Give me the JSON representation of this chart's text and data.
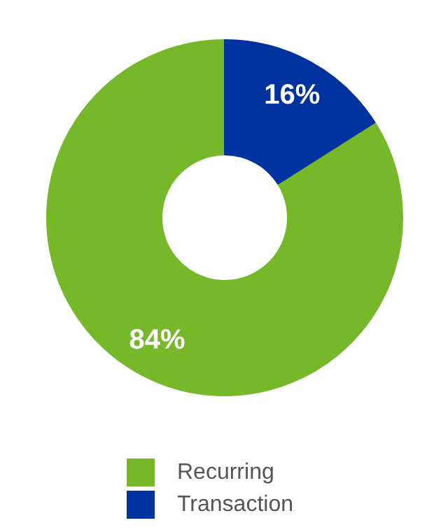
{
  "chart_data": {
    "type": "donut",
    "categories": [
      "Recurring",
      "Transaction"
    ],
    "values": [
      84,
      16
    ],
    "colors": [
      "#76b82a",
      "#0033a0"
    ],
    "value_labels": [
      "84%",
      "16%"
    ],
    "legend": "bottom"
  }
}
